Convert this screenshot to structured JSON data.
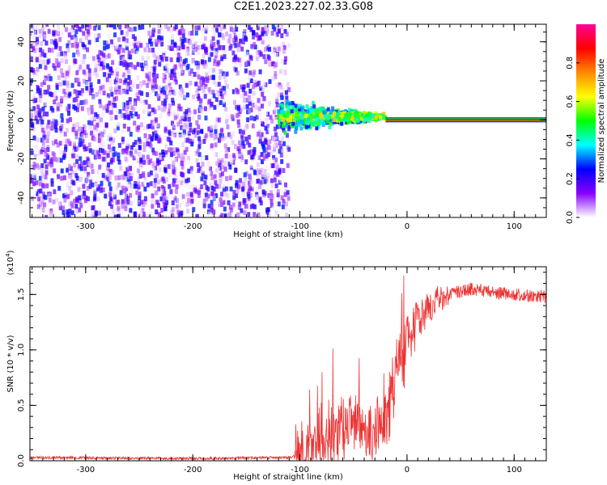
{
  "title": "C2E1.2023.227.02.33.G08",
  "colors": {
    "snr_line": "#ee3333",
    "axis": "#000000"
  },
  "chart_data": [
    {
      "type": "heatmap",
      "xlabel": "Height of straight line (km)",
      "ylabel": "Frequency (Hz)",
      "xlim": [
        -352,
        130
      ],
      "ylim": [
        -50,
        49
      ],
      "x_ticks": [
        -300,
        -200,
        -100,
        0,
        100
      ],
      "x_tick_labels": [
        "-300",
        "-200",
        "-100",
        "0",
        "100"
      ],
      "y_ticks": [
        -40,
        -20,
        0,
        20,
        40
      ],
      "y_tick_labels": [
        "-40",
        "-20",
        "0",
        "20",
        "40"
      ],
      "colorbar": {
        "label": "Normalized spectral amplitude",
        "range": [
          0,
          1
        ],
        "ticks": [
          0.0,
          0.2,
          0.4,
          0.6,
          0.8
        ],
        "tick_labels": [
          "0.0",
          "0.2",
          "0.4",
          "0.6",
          "0.8"
        ],
        "colormap": [
          "#ffffff",
          "#8800ff",
          "#0000ff",
          "#00ffff",
          "#00ff00",
          "#ffff00",
          "#ff8800",
          "#ff0000",
          "#ff0099"
        ]
      },
      "regions": {
        "broadband_noise_x": [
          -352,
          -110
        ],
        "narrow_line_start_x": -120,
        "line_frequency": 0
      }
    },
    {
      "type": "line",
      "xlabel": "Height of straight line (km)",
      "ylabel": "SNR (10 * v/v)",
      "y_multiplier_label": "(x10",
      "y_multiplier_exp": "4",
      "y_multiplier_close": ")",
      "xlim": [
        -352,
        130
      ],
      "ylim": [
        0,
        1.75
      ],
      "x_ticks": [
        -300,
        -200,
        -100,
        0,
        100
      ],
      "x_tick_labels": [
        "-300",
        "-200",
        "-100",
        "0",
        "100"
      ],
      "y_ticks": [
        0.0,
        0.5,
        1.0,
        1.5
      ],
      "y_tick_labels": [
        "0.0",
        "0.5",
        "1.0",
        "1.5"
      ],
      "trend_x": [
        -352,
        -200,
        -110,
        -100,
        -95,
        -85,
        -70,
        -60,
        -50,
        -40,
        -30,
        -20,
        -15,
        -10,
        -5,
        0,
        5,
        10,
        15,
        20,
        25,
        30,
        40,
        50,
        60,
        80,
        100,
        130
      ],
      "trend_y": [
        0.03,
        0.02,
        0.03,
        0.05,
        0.1,
        0.18,
        0.25,
        0.3,
        0.32,
        0.3,
        0.28,
        0.35,
        0.55,
        0.75,
        0.92,
        1.05,
        1.15,
        1.25,
        1.33,
        1.38,
        1.42,
        1.46,
        1.5,
        1.53,
        1.55,
        1.52,
        1.5,
        1.48
      ]
    }
  ]
}
